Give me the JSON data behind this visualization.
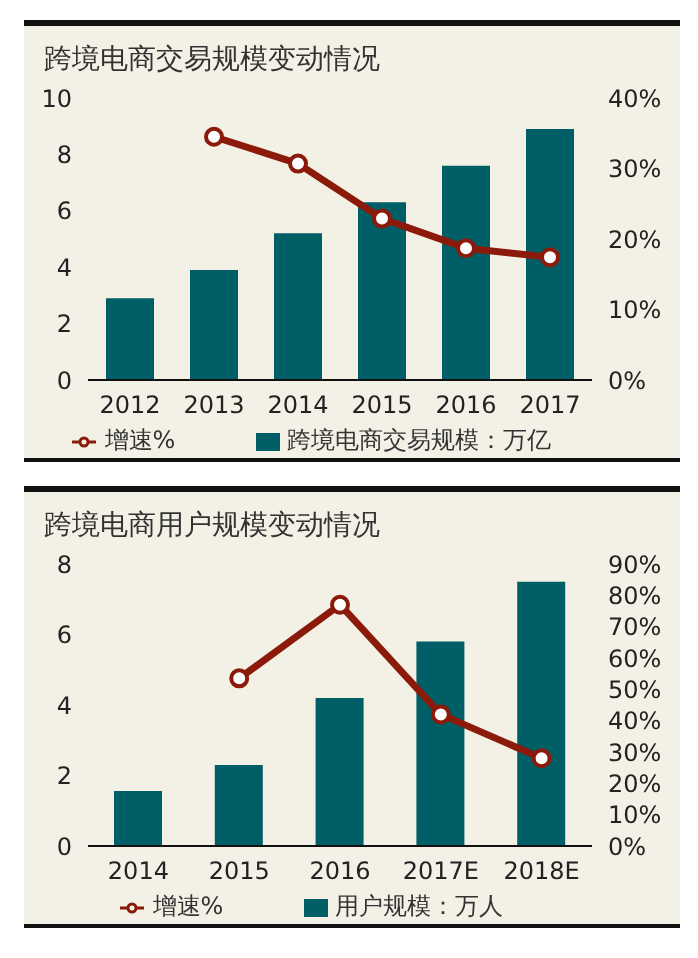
{
  "chart_data": [
    {
      "type": "bar",
      "title": "跨境电商交易规模变动情况",
      "categories": [
        "2012",
        "2013",
        "2014",
        "2015",
        "2016",
        "2017"
      ],
      "series": [
        {
          "name": "跨境电商交易规模：万亿",
          "color": "#005f66",
          "values": [
            2.9,
            3.9,
            5.2,
            6.3,
            7.6,
            8.9
          ]
        },
        {
          "type": "line",
          "name": "增速%",
          "color": "#8b1a0a",
          "axis": "y2",
          "marker": "circle",
          "values": [
            null,
            34.5,
            30.7,
            22.9,
            18.7,
            17.4
          ]
        }
      ],
      "ylim": [
        0,
        10
      ],
      "yticks": [
        0,
        2,
        4,
        6,
        8,
        10
      ],
      "y2lim": [
        0,
        40
      ],
      "y2ticks": [
        {
          "value": 0,
          "label": "0%"
        },
        {
          "value": 10,
          "label": "10%"
        },
        {
          "value": 20,
          "label": "20%"
        },
        {
          "value": 30,
          "label": "30%"
        },
        {
          "value": 40,
          "label": "40%"
        }
      ],
      "grid": false,
      "legend": "bottom"
    },
    {
      "type": "bar",
      "title": "跨境电商用户规模变动情况",
      "categories": [
        "2014",
        "2015",
        "2016",
        "2017E",
        "2018E"
      ],
      "series": [
        {
          "name": "用户规模：万人",
          "color": "#005f66",
          "values": [
            1.56,
            2.3,
            4.2,
            5.8,
            7.5
          ]
        },
        {
          "type": "line",
          "name": "增速%",
          "color": "#8b1a0a",
          "axis": "y2",
          "marker": "circle",
          "values": [
            null,
            53.5,
            77,
            42,
            28
          ]
        }
      ],
      "ylim": [
        0,
        8
      ],
      "yticks": [
        0,
        2,
        4,
        6,
        8
      ],
      "y2lim": [
        0,
        90
      ],
      "y2ticks": [
        {
          "value": 0,
          "label": "0%"
        },
        {
          "value": 10,
          "label": "10%"
        },
        {
          "value": 20,
          "label": "20%"
        },
        {
          "value": 30,
          "label": "30%"
        },
        {
          "value": 40,
          "label": "40%"
        },
        {
          "value": 50,
          "label": "50%"
        },
        {
          "value": 60,
          "label": "60%"
        },
        {
          "value": 70,
          "label": "70%"
        },
        {
          "value": 80,
          "label": "80%"
        },
        {
          "value": 90,
          "label": "90%"
        }
      ],
      "grid": false,
      "legend": "bottom"
    }
  ]
}
